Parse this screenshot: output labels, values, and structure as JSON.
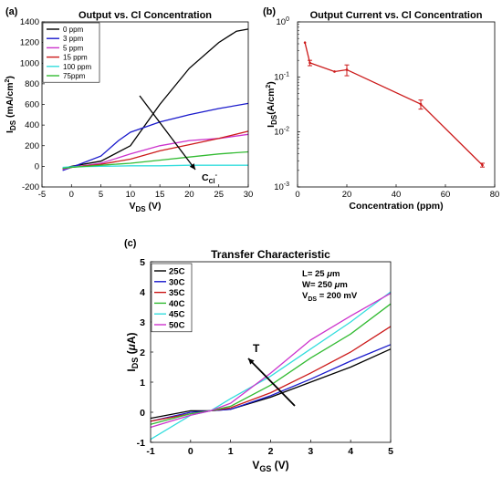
{
  "chart_data": [
    {
      "panel_label": "(a)",
      "type": "line",
      "title": "Output vs. Cl Concentration",
      "xlabel": "V",
      "xlabel_sub": "DS",
      "xlabel_unit": " (V)",
      "ylabel": "I",
      "ylabel_sub": "DS",
      "ylabel_unit": " (mA/cm",
      "ylabel_sup": "2",
      "ylabel_close": ")",
      "xlim": [
        -5,
        30
      ],
      "ylim": [
        -200,
        1400
      ],
      "xticks": [
        -5,
        0,
        5,
        10,
        15,
        20,
        25,
        30
      ],
      "yticks": [
        -200,
        0,
        200,
        400,
        600,
        800,
        1000,
        1200,
        1400
      ],
      "legend_position": "top-left",
      "annotation": {
        "text": "C",
        "sub": "Cl",
        "sup": "-"
      },
      "series": [
        {
          "name": "0 ppm",
          "color": "#000000",
          "x": [
            -1.5,
            0,
            5,
            10,
            15,
            20,
            25,
            28,
            30
          ],
          "y": [
            -20,
            0,
            50,
            200,
            600,
            950,
            1200,
            1310,
            1330
          ]
        },
        {
          "name": "3 ppm",
          "color": "#1a1acc",
          "x": [
            -1.5,
            0,
            5,
            8,
            10,
            15,
            20,
            25,
            30
          ],
          "y": [
            -40,
            -10,
            100,
            250,
            330,
            430,
            500,
            560,
            610
          ]
        },
        {
          "name": "5 ppm",
          "color": "#cc33cc",
          "x": [
            -1.5,
            0,
            5,
            10,
            15,
            20,
            25,
            30
          ],
          "y": [
            -30,
            -10,
            30,
            120,
            200,
            250,
            270,
            310
          ]
        },
        {
          "name": "15 ppm",
          "color": "#cc1a1a",
          "x": [
            -1.5,
            0,
            5,
            10,
            15,
            20,
            25,
            30
          ],
          "y": [
            -20,
            -10,
            20,
            70,
            150,
            210,
            270,
            340
          ]
        },
        {
          "name": "100 ppm",
          "color": "#33dddd",
          "x": [
            -1.5,
            0,
            5,
            10,
            15,
            20,
            25,
            30
          ],
          "y": [
            -10,
            -5,
            0,
            5,
            5,
            10,
            10,
            10
          ]
        },
        {
          "name": "75ppm",
          "color": "#33bb33",
          "x": [
            -1.5,
            0,
            5,
            10,
            15,
            20,
            25,
            30
          ],
          "y": [
            -20,
            -10,
            10,
            30,
            60,
            90,
            120,
            140
          ]
        }
      ]
    },
    {
      "panel_label": "(b)",
      "type": "line",
      "title": "Output Current vs. Cl Concentration",
      "xlabel": "Concentration (ppm)",
      "ylabel": "I",
      "ylabel_sub": "DS",
      "ylabel_unit": "(A/cm",
      "ylabel_sup": "2",
      "ylabel_close": ")",
      "xlim": [
        0,
        80
      ],
      "ylim": [
        0.001,
        1
      ],
      "yscale": "log",
      "xticks": [
        0,
        20,
        40,
        60,
        80
      ],
      "yticks": [
        {
          "value": 0.001,
          "base": "10",
          "exp": "-3"
        },
        {
          "value": 0.01,
          "base": "10",
          "exp": "-2"
        },
        {
          "value": 0.1,
          "base": "10",
          "exp": "-1"
        },
        {
          "value": 1,
          "base": "10",
          "exp": "0"
        }
      ],
      "color": "#cc1a1a",
      "series": [
        {
          "x": [
            3,
            5,
            15,
            20,
            50,
            75
          ],
          "y": [
            0.42,
            0.18,
            0.125,
            0.135,
            0.032,
            0.0025
          ],
          "err_low": [
            0.42,
            0.16,
            0.125,
            0.105,
            0.026,
            0.0023
          ],
          "err_high": [
            0.42,
            0.2,
            0.125,
            0.165,
            0.038,
            0.0027
          ]
        }
      ]
    },
    {
      "panel_label": "(c)",
      "type": "line",
      "title": "Transfer Characteristic",
      "xlabel": "V",
      "xlabel_sub": "GS",
      "xlabel_unit": " (V)",
      "ylabel": "I",
      "ylabel_sub": "DS",
      "ylabel_unit_pre": " (",
      "ylabel_mu": "μ",
      "ylabel_unit_post": "A)",
      "xlim": [
        -1,
        5
      ],
      "ylim": [
        -1,
        5
      ],
      "xticks": [
        -1,
        0,
        1,
        2,
        3,
        4,
        5
      ],
      "yticks": [
        -1,
        0,
        1,
        2,
        3,
        4,
        5
      ],
      "legend_position": "top-left",
      "params": [
        {
          "name": "L",
          "value": "=  25 ",
          "mu": "μ",
          "unit": "m"
        },
        {
          "name": "W",
          "value": "=  250 ",
          "mu": "μ",
          "unit": "m"
        },
        {
          "name": "V",
          "sub": "DS",
          "value": " = 200 mV"
        }
      ],
      "annotation": {
        "text": "T"
      },
      "series": [
        {
          "name": "25C",
          "color": "#000000",
          "x": [
            -1,
            0,
            0.5,
            1,
            2,
            3,
            4,
            5
          ],
          "y": [
            -0.2,
            0.05,
            0.05,
            0.1,
            0.5,
            1.0,
            1.5,
            2.1
          ]
        },
        {
          "name": "30C",
          "color": "#1a1acc",
          "x": [
            -1,
            0,
            0.5,
            1,
            2,
            3,
            4,
            5
          ],
          "y": [
            -0.3,
            0.0,
            0.05,
            0.1,
            0.55,
            1.1,
            1.7,
            2.25
          ]
        },
        {
          "name": "35C",
          "color": "#cc1a1a",
          "x": [
            -1,
            0,
            0.5,
            1,
            2,
            3,
            4,
            5
          ],
          "y": [
            -0.3,
            -0.05,
            0.05,
            0.15,
            0.65,
            1.3,
            2.0,
            2.85
          ]
        },
        {
          "name": "40C",
          "color": "#33bb33",
          "x": [
            -1,
            0,
            0.5,
            1,
            2,
            3,
            4,
            5
          ],
          "y": [
            -0.4,
            -0.05,
            0.05,
            0.2,
            0.9,
            1.8,
            2.6,
            3.6
          ]
        },
        {
          "name": "45C",
          "color": "#33dddd",
          "x": [
            -1,
            0,
            0.5,
            1,
            2,
            3,
            4,
            5
          ],
          "y": [
            -0.9,
            -0.1,
            0.05,
            0.45,
            1.2,
            2.1,
            3.0,
            4.0
          ]
        },
        {
          "name": "50C",
          "color": "#cc33cc",
          "x": [
            -1,
            0,
            0.5,
            1,
            2,
            3,
            4,
            5
          ],
          "y": [
            -0.5,
            -0.1,
            0.05,
            0.3,
            1.3,
            2.4,
            3.2,
            3.95
          ]
        }
      ]
    }
  ]
}
